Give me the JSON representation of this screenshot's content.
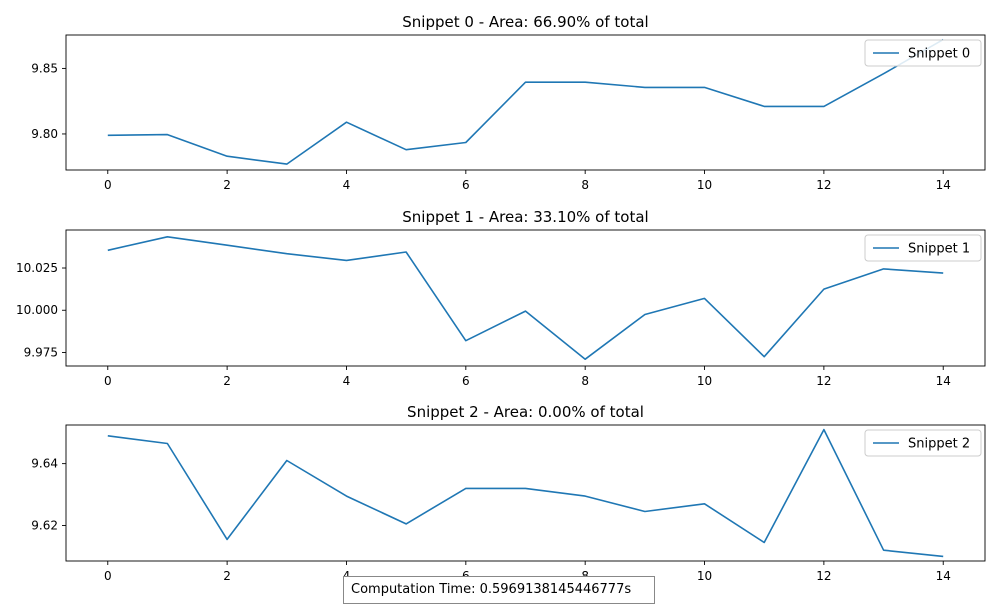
{
  "chart_data": [
    {
      "type": "line",
      "title": "Snippet 0 - Area: 66.90% of total",
      "x": [
        0,
        1,
        2,
        3,
        4,
        5,
        6,
        7,
        8,
        9,
        10,
        11,
        12,
        13,
        14
      ],
      "series": [
        {
          "name": "Snippet 0",
          "color": "#1f77b4",
          "values": [
            9.799,
            9.7995,
            9.783,
            9.777,
            9.809,
            9.788,
            9.7935,
            9.8395,
            9.8395,
            9.8355,
            9.8355,
            9.821,
            9.821,
            9.846,
            9.872
          ]
        }
      ],
      "xlim": [
        -0.7,
        14.7
      ],
      "ylim": [
        9.7725,
        9.8755
      ],
      "xticks": [
        0,
        2,
        4,
        6,
        8,
        10,
        12,
        14
      ],
      "yticks": [
        9.8,
        9.85
      ],
      "ytick_labels": [
        "9.80",
        "9.85"
      ],
      "legend": "top-right",
      "grid": false
    },
    {
      "type": "line",
      "title": "Snippet 1 - Area: 33.10% of total",
      "x": [
        0,
        1,
        2,
        3,
        4,
        5,
        6,
        7,
        8,
        9,
        10,
        11,
        12,
        13,
        14
      ],
      "series": [
        {
          "name": "Snippet 1",
          "color": "#1f77b4",
          "values": [
            10.0355,
            10.0435,
            10.0385,
            10.0335,
            10.0295,
            10.0345,
            9.982,
            9.9995,
            9.971,
            9.9975,
            10.007,
            9.9725,
            10.0125,
            10.0245,
            10.022
          ]
        }
      ],
      "xlim": [
        -0.7,
        14.7
      ],
      "ylim": [
        9.967,
        10.0475
      ],
      "xticks": [
        0,
        2,
        4,
        6,
        8,
        10,
        12,
        14
      ],
      "yticks": [
        9.975,
        10.0,
        10.025
      ],
      "ytick_labels": [
        "9.975",
        "10.000",
        "10.025"
      ],
      "legend": "top-right",
      "grid": false
    },
    {
      "type": "line",
      "title": "Snippet 2 - Area: 0.00% of total",
      "x": [
        0,
        1,
        2,
        3,
        4,
        5,
        6,
        7,
        8,
        9,
        10,
        11,
        12,
        13,
        14
      ],
      "series": [
        {
          "name": "Snippet 2",
          "color": "#1f77b4",
          "values": [
            9.649,
            9.6465,
            9.6155,
            9.641,
            9.6295,
            9.6205,
            9.632,
            9.632,
            9.6295,
            9.6245,
            9.627,
            9.6145,
            9.651,
            9.612,
            9.61
          ]
        }
      ],
      "xlim": [
        -0.7,
        14.7
      ],
      "ylim": [
        9.6085,
        9.6525
      ],
      "xticks": [
        0,
        2,
        4,
        6,
        8,
        10,
        12,
        14
      ],
      "yticks": [
        9.62,
        9.64
      ],
      "ytick_labels": [
        "9.62",
        "9.64"
      ],
      "legend": "top-right",
      "grid": false
    }
  ],
  "footer": {
    "computation_time": "Computation Time: 0.5969138145446777s"
  }
}
